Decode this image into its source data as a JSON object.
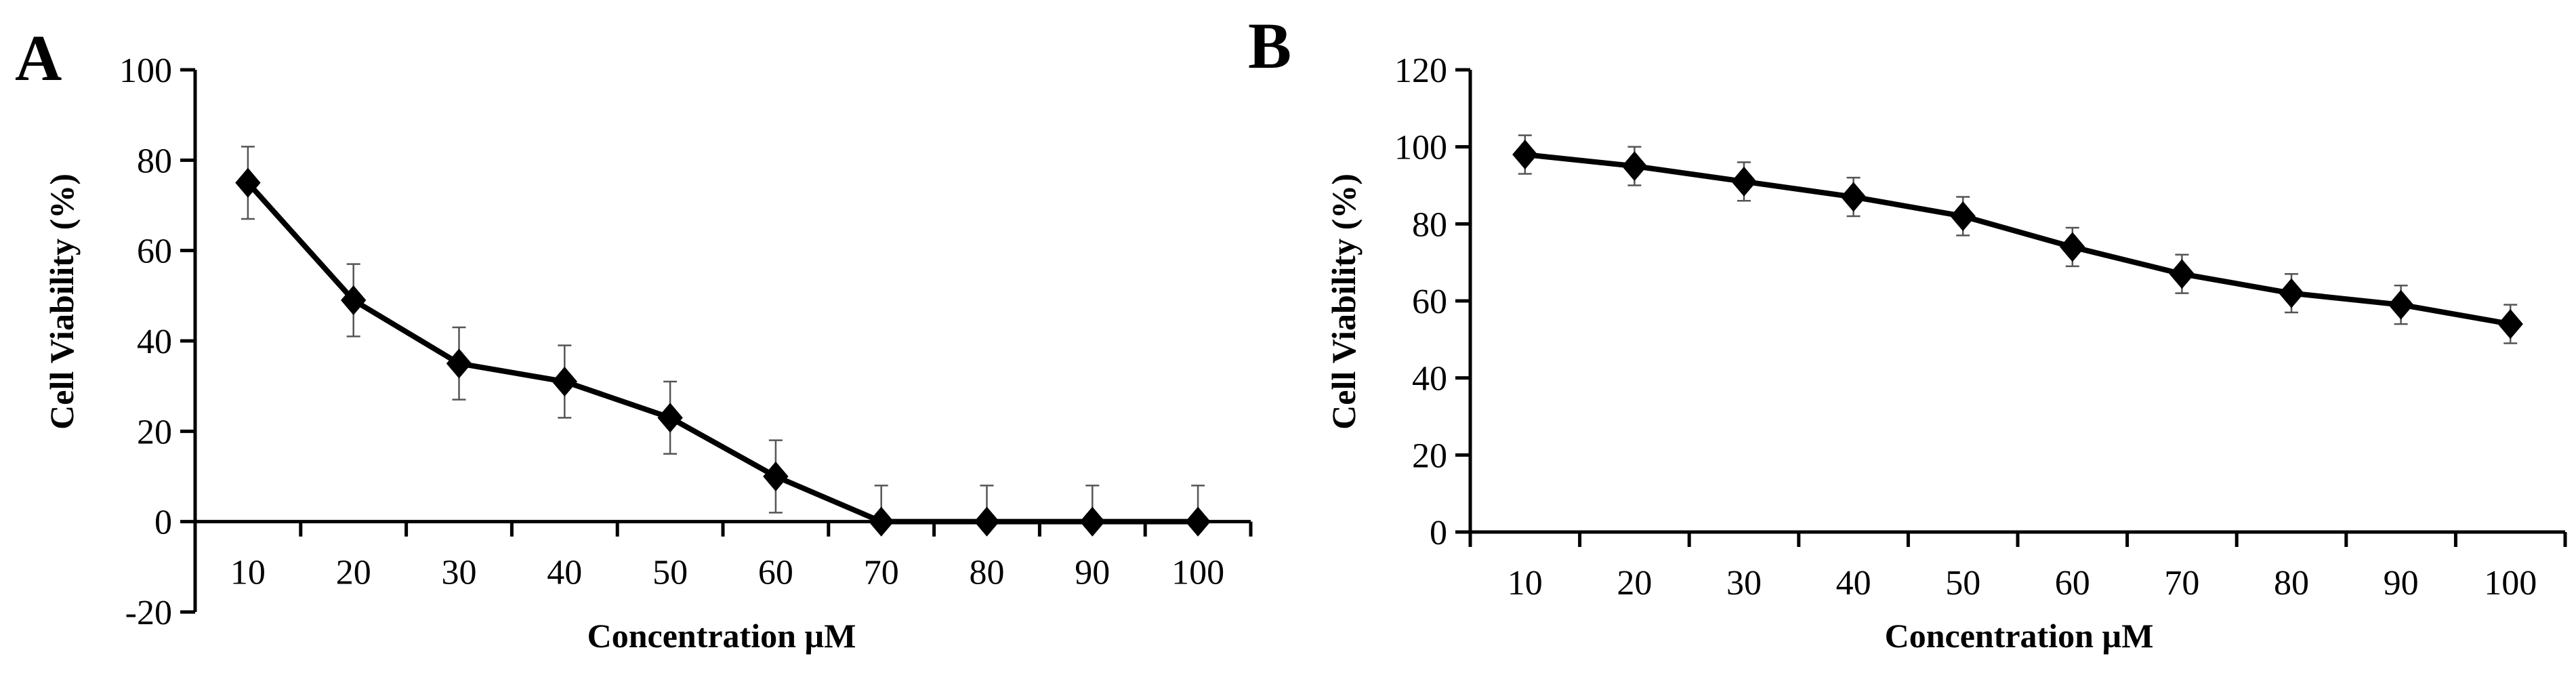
{
  "chart_data": [
    {
      "panel": "A",
      "type": "line",
      "xlabel": "Concentration µM",
      "ylabel": "Cell Viability (%)",
      "categories": [
        "10",
        "20",
        "30",
        "40",
        "50",
        "60",
        "70",
        "80",
        "90",
        "100"
      ],
      "values": [
        75,
        49,
        35,
        31,
        23,
        10,
        0,
        0,
        0,
        0
      ],
      "errors": [
        8,
        8,
        8,
        8,
        8,
        8,
        8,
        8,
        8,
        8
      ],
      "yticks": [
        "-20",
        "0",
        "20",
        "40",
        "60",
        "80",
        "100"
      ],
      "ylim": [
        -20,
        100
      ],
      "grid": false,
      "legend": "none",
      "marker": "diamond",
      "color": "#000000"
    },
    {
      "panel": "B",
      "type": "line",
      "xlabel": "Concentration µM",
      "ylabel": "Cell Viability (%)",
      "categories": [
        "10",
        "20",
        "30",
        "40",
        "50",
        "60",
        "70",
        "80",
        "90",
        "100"
      ],
      "values": [
        98,
        95,
        91,
        87,
        82,
        74,
        67,
        62,
        59,
        54
      ],
      "errors": [
        5,
        5,
        5,
        5,
        5,
        5,
        5,
        5,
        5,
        5
      ],
      "yticks": [
        "0",
        "20",
        "40",
        "60",
        "80",
        "100",
        "120"
      ],
      "ylim": [
        0,
        120
      ],
      "grid": false,
      "legend": "none",
      "marker": "diamond",
      "color": "#000000"
    }
  ]
}
